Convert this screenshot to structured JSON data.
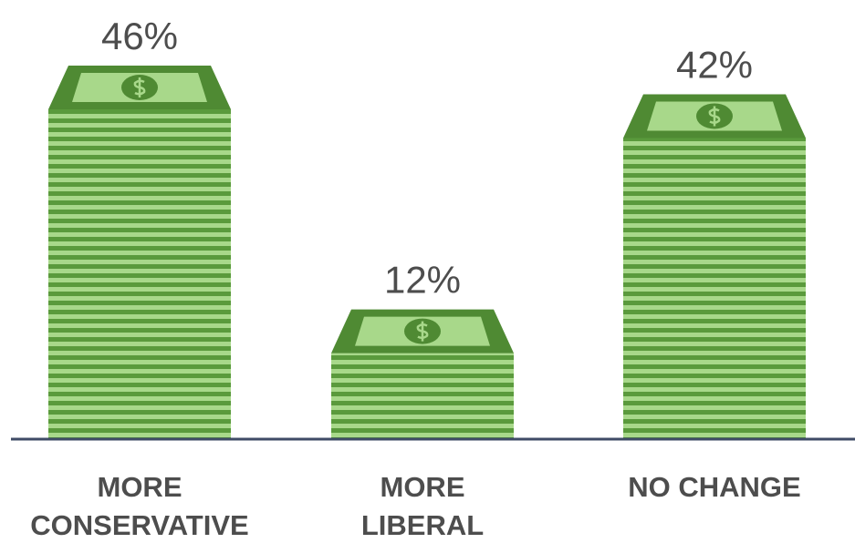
{
  "chart_data": {
    "type": "bar",
    "categories": [
      "MORE\nCONSERVATIVE",
      "MORE\nLIBERAL",
      "NO CHANGE"
    ],
    "values": [
      46,
      12,
      42
    ],
    "value_labels": [
      "46%",
      "12%",
      "42%"
    ],
    "color": "#5a9a3c"
  }
}
